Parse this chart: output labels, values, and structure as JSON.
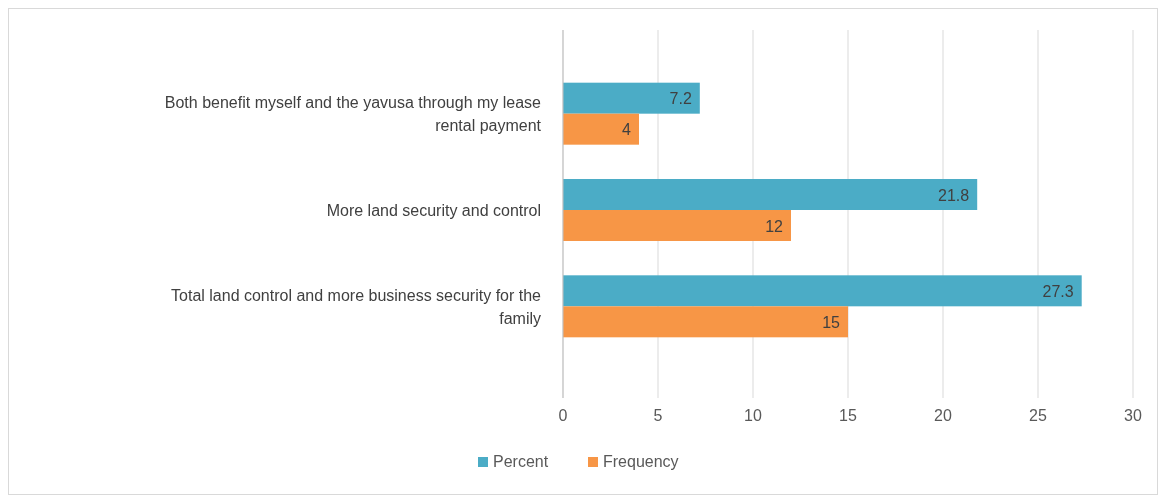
{
  "chart_data": {
    "type": "bar",
    "orientation": "horizontal",
    "categories": [
      "Both benefit myself and the yavusa through my lease rental payment",
      "More land security and control",
      "Total land control and more business security for the family"
    ],
    "series": [
      {
        "name": "Percent",
        "color": "#4bacc6",
        "values": [
          7.2,
          21.8,
          27.3
        ]
      },
      {
        "name": "Frequency",
        "color": "#f79646",
        "values": [
          4,
          12,
          15
        ]
      }
    ],
    "xlim": [
      0,
      30
    ],
    "xticks": [
      0,
      5,
      10,
      15,
      20,
      25,
      30
    ],
    "grid": "x",
    "legend": "bottom",
    "data_labels": true
  }
}
